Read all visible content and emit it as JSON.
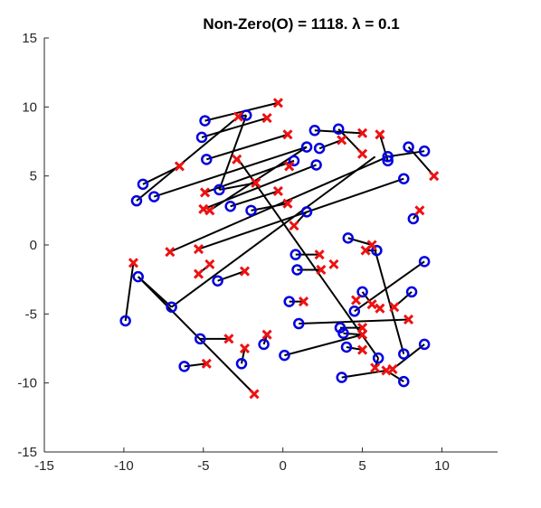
{
  "chart_data": {
    "type": "scatter",
    "title": "Non-Zero(O) = 1118. λ = 0.1",
    "xlabel": "",
    "ylabel": "",
    "xlim": [
      -15,
      13.5
    ],
    "ylim": [
      -15,
      15
    ],
    "x_ticks": [
      -15,
      -10,
      -5,
      0,
      5,
      10
    ],
    "y_ticks": [
      -15,
      -10,
      -5,
      0,
      5,
      10,
      15
    ],
    "grid": false,
    "legend": "none",
    "colors": {
      "circle": "#0000e0",
      "cross": "#ee1111",
      "line": "#000000"
    },
    "series": [
      {
        "marker": "circle",
        "points": [
          [
            -4.9,
            9.0
          ],
          [
            -2.3,
            9.4
          ],
          [
            -5.1,
            7.8
          ],
          [
            -4.8,
            6.2
          ],
          [
            -8.8,
            4.4
          ],
          [
            -9.2,
            3.2
          ],
          [
            -8.1,
            3.5
          ],
          [
            -4.0,
            4.0
          ],
          [
            -3.3,
            2.8
          ],
          [
            -2.0,
            2.5
          ],
          [
            0.7,
            6.1
          ],
          [
            1.5,
            7.1
          ],
          [
            2.0,
            8.3
          ],
          [
            2.3,
            7.0
          ],
          [
            3.5,
            8.4
          ],
          [
            2.1,
            5.8
          ],
          [
            1.5,
            2.4
          ],
          [
            6.6,
            6.4
          ],
          [
            6.6,
            6.1
          ],
          [
            7.6,
            4.8
          ],
          [
            7.9,
            7.1
          ],
          [
            8.9,
            6.8
          ],
          [
            8.2,
            1.9
          ],
          [
            -9.9,
            -5.5
          ],
          [
            -9.1,
            -2.3
          ],
          [
            -7.0,
            -4.5
          ],
          [
            -4.1,
            -2.6
          ],
          [
            -5.2,
            -6.8
          ],
          [
            -6.2,
            -8.8
          ],
          [
            -2.6,
            -8.6
          ],
          [
            -1.2,
            -7.2
          ],
          [
            0.8,
            -0.7
          ],
          [
            0.9,
            -1.8
          ],
          [
            0.4,
            -4.1
          ],
          [
            0.1,
            -8.0
          ],
          [
            1.0,
            -5.7
          ],
          [
            4.1,
            0.5
          ],
          [
            5.9,
            -0.4
          ],
          [
            5.0,
            -3.4
          ],
          [
            4.5,
            -4.8
          ],
          [
            3.6,
            -6.0
          ],
          [
            3.8,
            -6.4
          ],
          [
            4.0,
            -7.4
          ],
          [
            6.0,
            -8.2
          ],
          [
            8.9,
            -1.2
          ],
          [
            8.1,
            -3.4
          ],
          [
            7.6,
            -7.9
          ],
          [
            8.9,
            -7.2
          ],
          [
            7.6,
            -9.9
          ],
          [
            3.7,
            -9.6
          ]
        ]
      },
      {
        "marker": "cross",
        "points": [
          [
            -0.3,
            10.3
          ],
          [
            -2.8,
            9.3
          ],
          [
            -1.0,
            9.2
          ],
          [
            0.3,
            8.0
          ],
          [
            5.0,
            8.1
          ],
          [
            3.7,
            7.6
          ],
          [
            5.0,
            6.6
          ],
          [
            6.1,
            8.0
          ],
          [
            -6.5,
            5.7
          ],
          [
            -2.9,
            6.2
          ],
          [
            -1.7,
            4.5
          ],
          [
            0.4,
            5.7
          ],
          [
            -4.9,
            3.8
          ],
          [
            -5.0,
            2.6
          ],
          [
            -4.6,
            2.5
          ],
          [
            -0.3,
            3.9
          ],
          [
            0.3,
            3.0
          ],
          [
            0.7,
            1.4
          ],
          [
            9.5,
            5.0
          ],
          [
            8.6,
            2.5
          ],
          [
            -9.4,
            -1.3
          ],
          [
            -7.1,
            -0.5
          ],
          [
            -5.3,
            -0.3
          ],
          [
            -5.3,
            -2.1
          ],
          [
            -4.6,
            -1.4
          ],
          [
            -2.4,
            -1.9
          ],
          [
            -3.4,
            -6.8
          ],
          [
            -2.4,
            -7.5
          ],
          [
            -4.8,
            -8.6
          ],
          [
            -1.8,
            -10.8
          ],
          [
            -1.0,
            -6.5
          ],
          [
            2.3,
            -0.7
          ],
          [
            2.4,
            -1.8
          ],
          [
            3.2,
            -1.4
          ],
          [
            5.2,
            -0.4
          ],
          [
            5.6,
            0.0
          ],
          [
            1.3,
            -4.1
          ],
          [
            4.6,
            -4.0
          ],
          [
            5.6,
            -4.3
          ],
          [
            5.0,
            -6.0
          ],
          [
            5.0,
            -6.5
          ],
          [
            6.1,
            -4.6
          ],
          [
            5.0,
            -7.6
          ],
          [
            7.0,
            -4.5
          ],
          [
            7.9,
            -5.4
          ],
          [
            5.8,
            -8.9
          ],
          [
            6.5,
            -9.1
          ],
          [
            6.9,
            -9.0
          ]
        ]
      }
    ],
    "segments": [
      [
        -4.9,
        9.0,
        -0.3,
        10.3
      ],
      [
        -2.3,
        9.4,
        -2.8,
        9.3
      ],
      [
        -5.1,
        7.8,
        -1.0,
        9.2
      ],
      [
        -4.8,
        6.2,
        0.3,
        8.0
      ],
      [
        -8.8,
        4.4,
        -6.5,
        5.7
      ],
      [
        -9.2,
        3.2,
        -2.8,
        9.3
      ],
      [
        -8.1,
        3.5,
        1.5,
        7.1
      ],
      [
        -4.0,
        4.0,
        -2.3,
        9.4
      ],
      [
        -3.3,
        2.8,
        -0.3,
        3.9
      ],
      [
        -2.0,
        2.5,
        0.3,
        3.0
      ],
      [
        0.7,
        6.1,
        -4.9,
        3.8
      ],
      [
        1.5,
        7.1,
        -4.6,
        2.5
      ],
      [
        2.0,
        8.3,
        5.0,
        8.1
      ],
      [
        2.3,
        7.0,
        3.7,
        7.6
      ],
      [
        3.5,
        8.4,
        5.0,
        6.6
      ],
      [
        2.1,
        5.8,
        -5.0,
        2.6
      ],
      [
        1.5,
        2.4,
        0.7,
        1.4
      ],
      [
        6.6,
        6.4,
        -7.1,
        -0.5
      ],
      [
        6.6,
        6.1,
        6.1,
        8.0
      ],
      [
        7.6,
        4.8,
        -5.3,
        -0.3
      ],
      [
        7.9,
        7.1,
        9.5,
        5.0
      ],
      [
        8.9,
        6.8,
        6.6,
        6.4
      ],
      [
        8.2,
        1.9,
        8.6,
        2.5
      ],
      [
        -9.9,
        -5.5,
        -9.4,
        -1.3
      ],
      [
        -9.1,
        -2.3,
        -7.0,
        -4.5
      ],
      [
        -7.0,
        -4.5,
        5.8,
        6.4
      ],
      [
        -4.1,
        -2.6,
        -2.4,
        -1.9
      ],
      [
        -5.2,
        -6.8,
        -3.4,
        -6.8
      ],
      [
        -6.2,
        -8.8,
        -4.8,
        -8.6
      ],
      [
        -2.6,
        -8.6,
        -2.4,
        -7.5
      ],
      [
        -1.2,
        -7.2,
        -1.0,
        -6.5
      ],
      [
        0.8,
        -0.7,
        2.3,
        -0.7
      ],
      [
        0.9,
        -1.8,
        2.4,
        -1.8
      ],
      [
        0.4,
        -4.1,
        1.3,
        -4.1
      ],
      [
        0.1,
        -8.0,
        5.0,
        -6.5
      ],
      [
        1.0,
        -5.7,
        7.9,
        -5.4
      ],
      [
        4.1,
        0.5,
        5.6,
        0.0
      ],
      [
        5.9,
        -0.4,
        5.2,
        -0.4
      ],
      [
        5.0,
        -3.4,
        5.6,
        -4.3
      ],
      [
        4.5,
        -4.8,
        8.9,
        -1.2
      ],
      [
        3.6,
        -6.0,
        5.0,
        -6.0
      ],
      [
        3.8,
        -6.4,
        5.0,
        -6.5
      ],
      [
        4.0,
        -7.4,
        5.0,
        -7.6
      ],
      [
        6.0,
        -8.2,
        5.8,
        -8.9
      ],
      [
        8.1,
        -3.4,
        7.0,
        -4.5
      ],
      [
        7.6,
        -7.9,
        5.8,
        -0.4
      ],
      [
        8.9,
        -7.2,
        6.9,
        -9.0
      ],
      [
        7.6,
        -9.9,
        6.5,
        -9.1
      ],
      [
        3.7,
        -9.6,
        6.5,
        -9.1
      ],
      [
        -2.8,
        6.2,
        6.0,
        -8.2
      ],
      [
        -1.7,
        4.5,
        -4.0,
        4.0
      ],
      [
        -5.3,
        -2.1,
        -4.6,
        -1.4
      ],
      [
        -1.8,
        -10.8,
        -9.1,
        -2.3
      ]
    ]
  }
}
